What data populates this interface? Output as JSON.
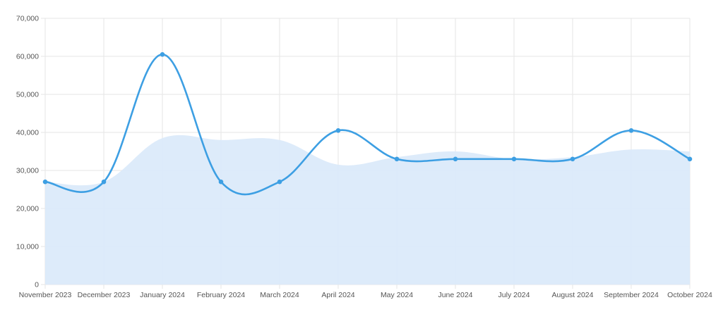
{
  "chart_data": {
    "type": "line",
    "categories": [
      "November 2023",
      "December 2023",
      "January 2024",
      "February 2024",
      "March 2024",
      "April 2024",
      "May 2024",
      "June 2024",
      "July 2024",
      "August 2024",
      "September 2024",
      "October 2024"
    ],
    "series": [
      {
        "type": "line",
        "values": [
          27000,
          27000,
          60500,
          27000,
          27000,
          40500,
          33000,
          33000,
          33000,
          33000,
          40500,
          33000
        ],
        "color": "#3d9fe3",
        "markers": true,
        "smooth": true
      },
      {
        "type": "area",
        "values": [
          27000,
          27000,
          38500,
          38000,
          38000,
          31500,
          33500,
          35000,
          33000,
          33500,
          35500,
          35000
        ],
        "color": "#dbeafa",
        "markers": false,
        "smooth": true
      }
    ],
    "y_ticks": [
      "0",
      "10,000",
      "20,000",
      "30,000",
      "40,000",
      "50,000",
      "60,000",
      "70,000"
    ],
    "ylim": [
      0,
      70000
    ],
    "grid": true,
    "legend": "none"
  },
  "colors": {
    "grid": "#e5e5e5",
    "axis_text": "#555555",
    "line": "#3d9fe3",
    "area_fill": "#dbeafa"
  }
}
